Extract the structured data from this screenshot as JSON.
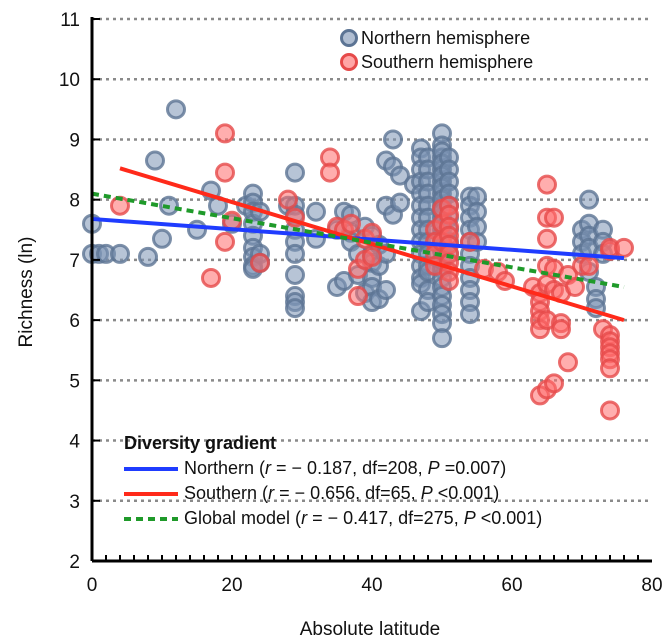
{
  "chart_data": {
    "type": "scatter",
    "xlabel": "Absolute latitude",
    "ylabel": "Richness (ln)",
    "xlim": [
      0,
      80
    ],
    "ylim": [
      2,
      11
    ],
    "x_ticks": [
      0,
      20,
      40,
      60,
      80
    ],
    "y_ticks": [
      2,
      3,
      4,
      5,
      6,
      7,
      8,
      9,
      10,
      11
    ],
    "grid": "horizontal dotted",
    "colors": {
      "north_point": "#7b93b4",
      "north_point_edge": "#5c7494",
      "south_point": "#ff6b6b",
      "south_point_edge": "#e64a4a",
      "north_line": "#1f3cff",
      "south_line": "#ff2a1a",
      "global_line": "#1f9a2a"
    },
    "point_legend": {
      "placement": "top-right",
      "entries": [
        {
          "label": "Northern hemisphere",
          "series": "north"
        },
        {
          "label": "Southern hemisphere",
          "series": "south"
        }
      ]
    },
    "series": [
      {
        "name": "Northern hemisphere",
        "kind": "points",
        "key": "north",
        "x": [
          0,
          0,
          1,
          2,
          4,
          8,
          9,
          10,
          11,
          12,
          15,
          17,
          18,
          20,
          22,
          23,
          23,
          23,
          23,
          23,
          23,
          23,
          23,
          23,
          24,
          24,
          24,
          28,
          29,
          29,
          29,
          29,
          29,
          29,
          29,
          29,
          29,
          29,
          32,
          32,
          35,
          35,
          36,
          36,
          37,
          37,
          37,
          38,
          38,
          39,
          39,
          40,
          40,
          40,
          40,
          40,
          40,
          41,
          41,
          41,
          42,
          42,
          42,
          42,
          43,
          43,
          43,
          44,
          44,
          46,
          47,
          47,
          47,
          47,
          47,
          47,
          47,
          47,
          47,
          47,
          47,
          47,
          47,
          47,
          48,
          48,
          48,
          48,
          48,
          48,
          48,
          48,
          48,
          48,
          48,
          48,
          48,
          50,
          50,
          50,
          50,
          50,
          50,
          50,
          50,
          50,
          50,
          50,
          50,
          50,
          50,
          50,
          50,
          50,
          50,
          50,
          50,
          50,
          50,
          50,
          50,
          50,
          50,
          50,
          50,
          50,
          50,
          51,
          51,
          51,
          51,
          51,
          51,
          51,
          51,
          51,
          54,
          54,
          54,
          54,
          54,
          54,
          54,
          54,
          54,
          54,
          54,
          55,
          55,
          55,
          55,
          70,
          70,
          70,
          71,
          71,
          71,
          71,
          71,
          72,
          72,
          72,
          73,
          73,
          73
        ],
        "y": [
          7.6,
          7.1,
          7.1,
          7.1,
          7.1,
          7.05,
          8.65,
          7.35,
          7.9,
          9.5,
          7.5,
          8.15,
          7.9,
          7.6,
          7.9,
          8.1,
          7.95,
          7.8,
          7.6,
          7.4,
          7.2,
          7.05,
          6.9,
          6.85,
          7.8,
          7.1,
          6.95,
          7.9,
          8.45,
          7.9,
          7.75,
          7.5,
          7.3,
          7.1,
          6.75,
          6.4,
          6.3,
          6.2,
          7.8,
          7.35,
          7.5,
          6.55,
          7.8,
          6.65,
          7.75,
          7.45,
          7.3,
          7.1,
          6.75,
          7.55,
          6.45,
          7.4,
          7.1,
          6.95,
          6.7,
          6.55,
          6.3,
          7.25,
          6.9,
          6.35,
          8.65,
          7.9,
          7.1,
          6.5,
          9.0,
          8.55,
          7.75,
          8.4,
          7.95,
          8.25,
          8.85,
          8.7,
          8.5,
          8.3,
          8.1,
          7.9,
          7.7,
          7.5,
          7.3,
          7.1,
          6.9,
          6.7,
          6.6,
          6.15,
          8.7,
          8.5,
          8.3,
          8.1,
          7.9,
          7.7,
          7.5,
          7.3,
          7.1,
          6.9,
          6.8,
          6.5,
          6.3,
          9.1,
          8.9,
          8.7,
          8.5,
          8.3,
          8.1,
          7.9,
          7.7,
          7.5,
          7.3,
          7.15,
          7.0,
          6.85,
          6.7,
          6.55,
          6.4,
          6.25,
          6.1,
          5.95,
          5.7,
          8.8,
          8.6,
          8.4,
          8.2,
          8.0,
          7.8,
          7.6,
          7.4,
          7.2,
          7.0,
          8.7,
          8.5,
          8.3,
          8.1,
          7.9,
          7.7,
          7.5,
          7.3,
          7.1,
          8.05,
          7.9,
          7.7,
          7.5,
          7.3,
          7.1,
          6.9,
          6.7,
          6.5,
          6.3,
          6.1,
          8.05,
          7.8,
          7.55,
          7.3,
          7.5,
          7.3,
          7.1,
          8.0,
          7.6,
          7.4,
          7.2,
          6.8,
          6.55,
          6.35,
          6.2,
          7.5,
          7.3,
          7.1
        ]
      },
      {
        "name": "Southern hemisphere",
        "kind": "points",
        "key": "south",
        "x": [
          4,
          17,
          19,
          19,
          19,
          20,
          24,
          28,
          29,
          34,
          34,
          35,
          36,
          37,
          38,
          38,
          39,
          39,
          40,
          40,
          49,
          49,
          49,
          49,
          50,
          50,
          50,
          51,
          51,
          51,
          51,
          51,
          51,
          51,
          51,
          51,
          54,
          56,
          58,
          59,
          63,
          64,
          64,
          64,
          64,
          64,
          64,
          65,
          65,
          65,
          65,
          65,
          65,
          65,
          66,
          66,
          66,
          66,
          67,
          67,
          67,
          68,
          68,
          69,
          70,
          71,
          73,
          74,
          74,
          74,
          74,
          74,
          74,
          74,
          74,
          74,
          76
        ],
        "y": [
          7.9,
          6.7,
          9.1,
          8.45,
          7.3,
          7.65,
          6.95,
          8.0,
          7.7,
          8.7,
          8.45,
          7.55,
          7.5,
          7.6,
          6.85,
          6.4,
          7.35,
          7.0,
          7.45,
          7.05,
          7.5,
          7.3,
          7.1,
          6.9,
          7.85,
          7.6,
          7.3,
          7.9,
          7.75,
          7.55,
          7.4,
          7.25,
          7.1,
          6.95,
          6.8,
          6.65,
          7.3,
          6.85,
          6.8,
          6.65,
          6.55,
          6.45,
          6.3,
          6.15,
          6.0,
          5.85,
          4.75,
          8.25,
          7.7,
          7.35,
          6.9,
          6.6,
          6.0,
          4.85,
          7.7,
          6.85,
          6.5,
          4.95,
          6.45,
          5.95,
          5.85,
          6.75,
          5.3,
          6.55,
          6.9,
          6.9,
          5.85,
          5.75,
          5.65,
          5.55,
          5.45,
          5.35,
          5.2,
          4.5,
          7.15,
          7.2,
          7.2
        ]
      },
      {
        "name": "Northern",
        "kind": "line",
        "key": "north_line",
        "style": "solid",
        "x": [
          0,
          76
        ],
        "y": [
          7.68,
          7.03
        ]
      },
      {
        "name": "Southern",
        "kind": "line",
        "key": "south_line",
        "style": "solid",
        "x": [
          4,
          76
        ],
        "y": [
          8.52,
          6.0
        ]
      },
      {
        "name": "Global model",
        "kind": "line",
        "key": "global_line",
        "style": "dotted",
        "x": [
          0,
          76
        ],
        "y": [
          8.1,
          6.55
        ]
      }
    ],
    "line_legend": {
      "placement": "bottom-left",
      "title": "Diversity gradient",
      "entries": [
        {
          "key": "north_line",
          "name": "Northern",
          "stats": {
            "r_label": "r",
            "r": "= − 0.187, df=208, ",
            "p_label": "P",
            "p": " =0.007)"
          }
        },
        {
          "key": "south_line",
          "name": "Southern",
          "stats": {
            "r_label": "r",
            "r": "= − 0.656, df=65, ",
            "p_label": "P",
            "p": " <0.001)"
          }
        },
        {
          "key": "global_line",
          "name": "Global model",
          "stats": {
            "r_label": "r",
            "r": "= − 0.417, df=275, ",
            "p_label": "P",
            "p": " <0.001)"
          }
        }
      ]
    }
  }
}
